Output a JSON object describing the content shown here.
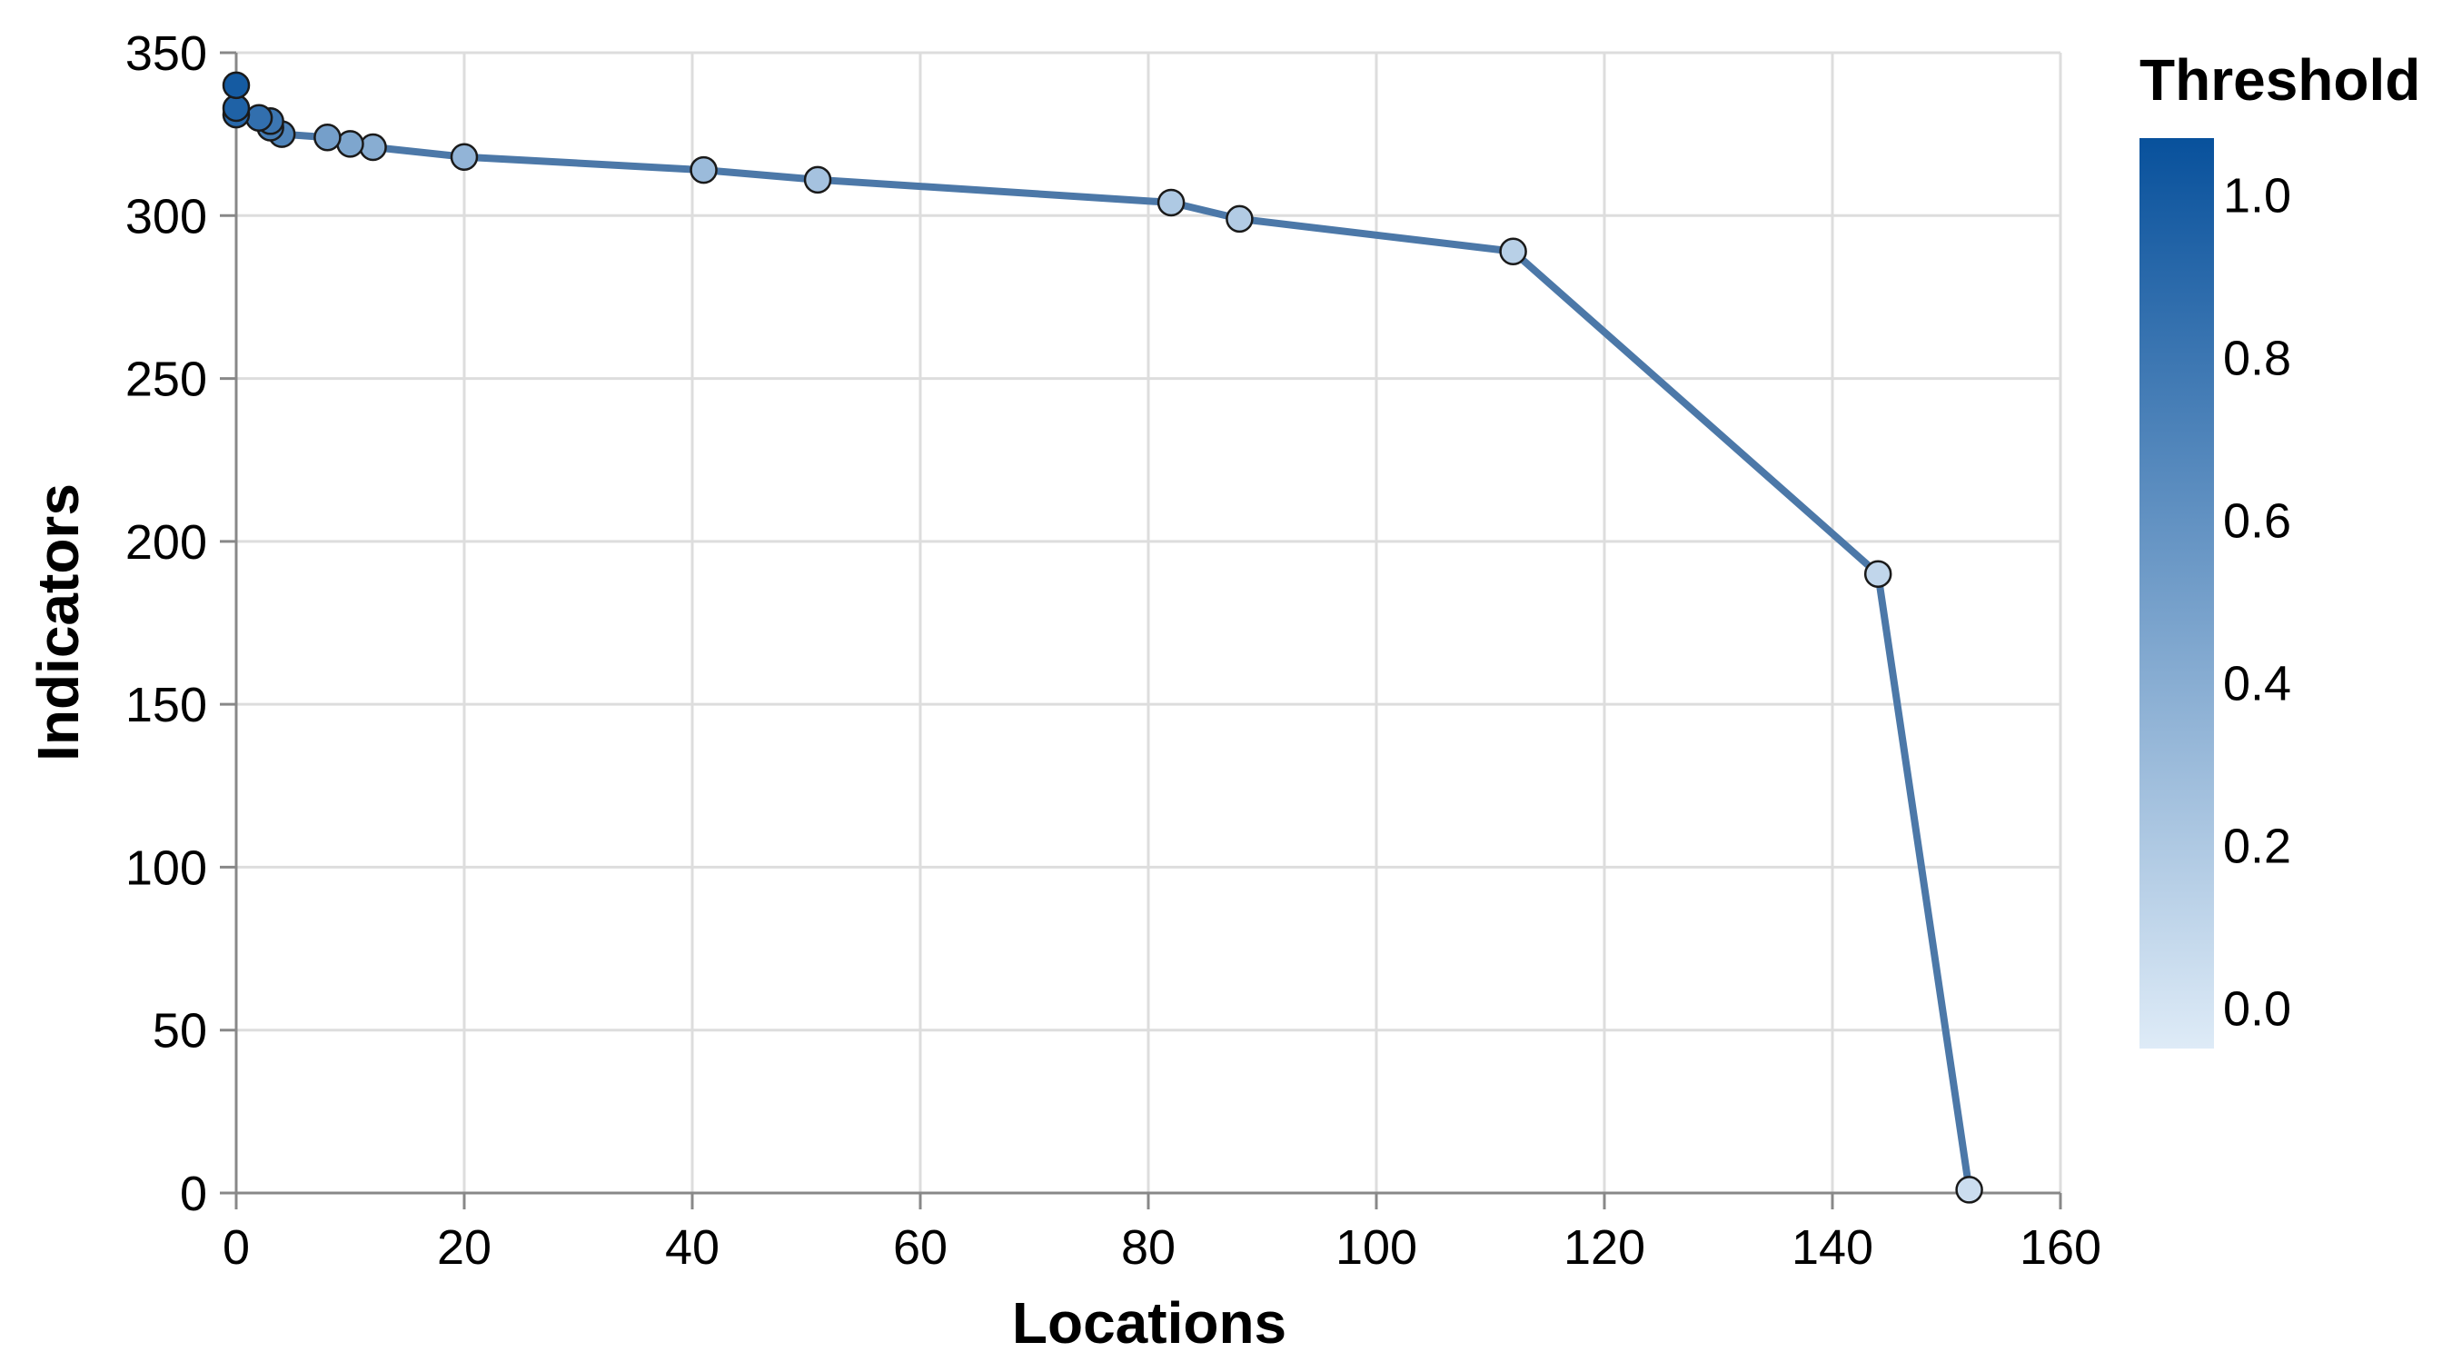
{
  "chart_data": {
    "type": "line",
    "xlabel": "Locations",
    "ylabel": "Indicators",
    "xlim": [
      0,
      160
    ],
    "ylim": [
      0,
      350
    ],
    "x_ticks": [
      0,
      20,
      40,
      60,
      80,
      100,
      120,
      140,
      160
    ],
    "y_ticks": [
      0,
      50,
      100,
      150,
      200,
      250,
      300,
      350
    ],
    "x_tick_labels": [
      "0",
      "20",
      "40",
      "60",
      "80",
      "100",
      "120",
      "140",
      "160"
    ],
    "y_tick_labels": [
      "0",
      "50",
      "100",
      "150",
      "200",
      "250",
      "300",
      "350"
    ],
    "grid": true,
    "line_color": "#4c78a8",
    "legend": {
      "title": "Threshold",
      "placement": "right",
      "type": "gradient",
      "domain": [
        -0.05,
        1.07
      ],
      "ticks": [
        0.0,
        0.2,
        0.4,
        0.6,
        0.8,
        1.0
      ],
      "tick_labels": [
        "0.0",
        "0.2",
        "0.4",
        "0.6",
        "0.8",
        "1.0"
      ],
      "color_low": "#deebf7",
      "color_high": "#08519c"
    },
    "points": [
      {
        "x": 0,
        "y": 340,
        "threshold": 1.0
      },
      {
        "x": 0,
        "y": 333,
        "threshold": 0.95
      },
      {
        "x": 0,
        "y": 331,
        "threshold": 0.9
      },
      {
        "x": 2,
        "y": 330,
        "threshold": 0.85
      },
      {
        "x": 3,
        "y": 329,
        "threshold": 0.8
      },
      {
        "x": 3,
        "y": 327,
        "threshold": 0.75
      },
      {
        "x": 4,
        "y": 325,
        "threshold": 0.7
      },
      {
        "x": 8,
        "y": 324,
        "threshold": 0.5
      },
      {
        "x": 10,
        "y": 322,
        "threshold": 0.45
      },
      {
        "x": 12,
        "y": 321,
        "threshold": 0.4
      },
      {
        "x": 20,
        "y": 318,
        "threshold": 0.35
      },
      {
        "x": 41,
        "y": 314,
        "threshold": 0.3
      },
      {
        "x": 51,
        "y": 311,
        "threshold": 0.25
      },
      {
        "x": 82,
        "y": 304,
        "threshold": 0.2
      },
      {
        "x": 88,
        "y": 299,
        "threshold": 0.18
      },
      {
        "x": 112,
        "y": 289,
        "threshold": 0.15
      },
      {
        "x": 144,
        "y": 190,
        "threshold": 0.1
      },
      {
        "x": 152,
        "y": 1,
        "threshold": 0.05
      }
    ]
  }
}
